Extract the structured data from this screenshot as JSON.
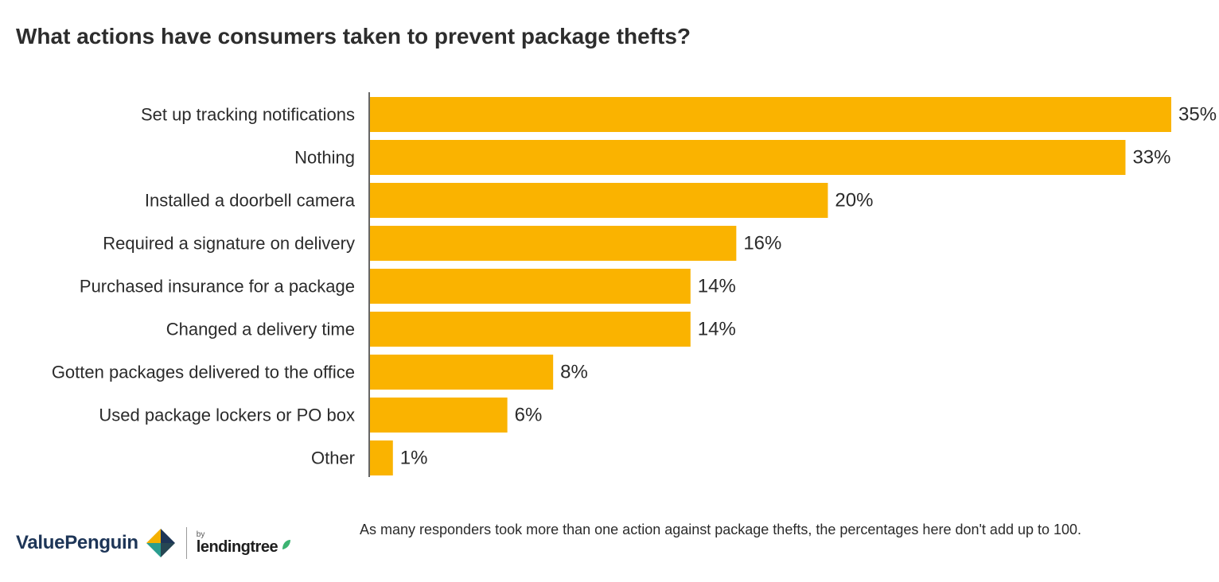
{
  "title": "What actions have consumers taken to prevent package thefts?",
  "footnote": "As many responders took more than one action against package thefts, the percentages here don't add up to 100.",
  "logo": {
    "brand": "ValuePenguin",
    "by": "by",
    "partner": "lendingtree"
  },
  "colors": {
    "bar": "#FAB300",
    "axis": "#333333",
    "text": "#2b2b2b"
  },
  "chart_data": {
    "type": "bar",
    "orientation": "horizontal",
    "categories": [
      "Set up tracking notifications",
      "Nothing",
      "Installed a doorbell camera",
      "Required a signature on delivery",
      "Purchased insurance for a package",
      "Changed a delivery time",
      "Gotten packages delivered to the office",
      "Used package lockers or PO box",
      "Other"
    ],
    "values": [
      35,
      33,
      20,
      16,
      14,
      14,
      8,
      6,
      1
    ],
    "value_labels": [
      "35%",
      "33%",
      "20%",
      "16%",
      "14%",
      "14%",
      "8%",
      "6%",
      "1%"
    ],
    "xlim": [
      0,
      35
    ],
    "grid": false,
    "legend": "none"
  }
}
